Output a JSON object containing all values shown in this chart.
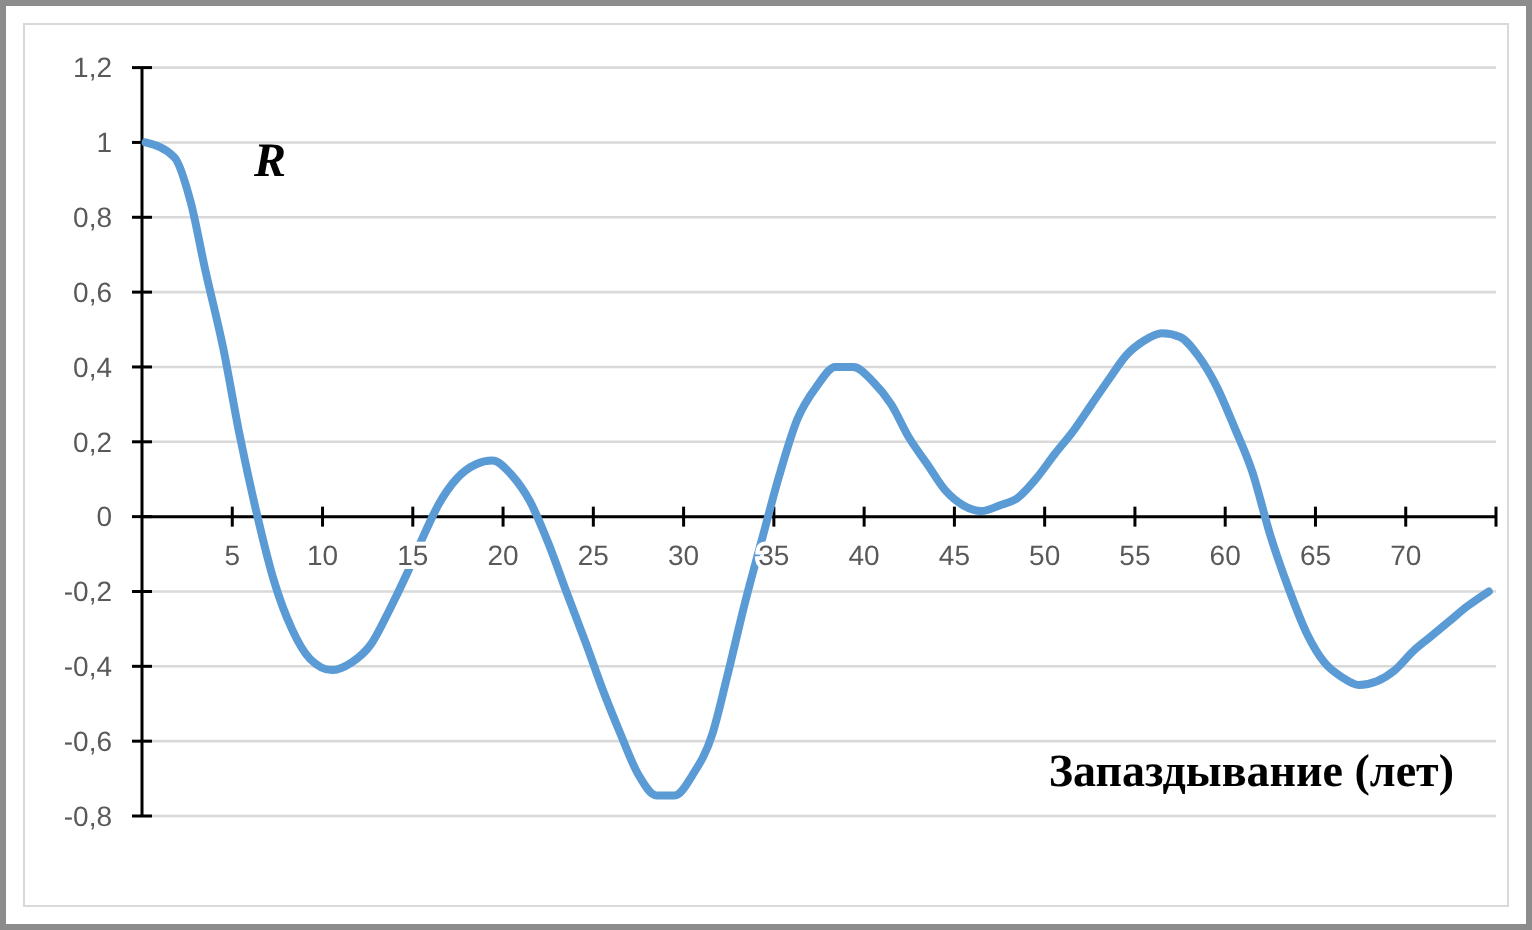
{
  "chart_data": {
    "type": "line",
    "xlabel": "Запаздывание (лет)",
    "ylabel": "R",
    "x": [
      0.2,
      1.8,
      2.7,
      3.5,
      4.5,
      5.4,
      6.3,
      7.3,
      8.3,
      9.3,
      10.5,
      11.6,
      12.7,
      13.7,
      14.7,
      15.7,
      16.4,
      17.4,
      18.5,
      19.4,
      20.5,
      21.5,
      22.5,
      23.5,
      24.6,
      25.5,
      26.5,
      27.5,
      28.5,
      29.5,
      30.5,
      31.6,
      32.4,
      33.4,
      34.4,
      35.3,
      36.3,
      37.4,
      38.4,
      39.4,
      40.5,
      41.5,
      42.5,
      43.5,
      44.5,
      45.5,
      46.5,
      47.5,
      48.5,
      49.5,
      50.6,
      51.6,
      52.6,
      53.6,
      54.5,
      55.5,
      56.5,
      57.5,
      58.5,
      59.5,
      60.5,
      61.5,
      62.5,
      63.5,
      64.5,
      65.5,
      66.5,
      67.4,
      68.4,
      69.4,
      70.4,
      71.4,
      72.4,
      73.4,
      74.6
    ],
    "series": [
      {
        "color": "#5b9bd5",
        "values": [
          1.0,
          0.96,
          0.84,
          0.66,
          0.45,
          0.22,
          0.02,
          -0.17,
          -0.3,
          -0.38,
          -0.41,
          -0.39,
          -0.34,
          -0.25,
          -0.15,
          -0.04,
          0.03,
          0.1,
          0.14,
          0.15,
          0.11,
          0.04,
          -0.07,
          -0.2,
          -0.34,
          -0.46,
          -0.58,
          -0.69,
          -0.745,
          -0.745,
          -0.69,
          -0.58,
          -0.43,
          -0.23,
          -0.05,
          0.11,
          0.26,
          0.35,
          0.4,
          0.4,
          0.36,
          0.3,
          0.21,
          0.14,
          0.07,
          0.03,
          0.015,
          0.03,
          0.05,
          0.1,
          0.17,
          0.23,
          0.3,
          0.37,
          0.43,
          0.47,
          0.49,
          0.48,
          0.43,
          0.35,
          0.24,
          0.12,
          -0.05,
          -0.19,
          -0.31,
          -0.39,
          -0.43,
          -0.45,
          -0.44,
          -0.41,
          -0.36,
          -0.32,
          -0.28,
          -0.24,
          -0.2
        ]
      }
    ],
    "xlim": [
      0,
      75
    ],
    "xticks": [
      5,
      10,
      15,
      20,
      25,
      30,
      35,
      40,
      45,
      50,
      55,
      60,
      65,
      70
    ],
    "ylim": [
      -0.8,
      1.2
    ],
    "yticks": [
      {
        "value": -0.8,
        "label": "-0,8"
      },
      {
        "value": -0.6,
        "label": "-0,6"
      },
      {
        "value": -0.4,
        "label": "-0,4"
      },
      {
        "value": -0.2,
        "label": "-0,2"
      },
      0,
      {
        "value": 0.2,
        "label": "0,2"
      },
      {
        "value": 0.4,
        "label": "0,4"
      },
      {
        "value": 0.6,
        "label": "0,6"
      },
      {
        "value": 0.8,
        "label": "0,8"
      },
      1,
      {
        "value": 1.2,
        "label": "1,2"
      }
    ],
    "grid": "y",
    "marker": "none",
    "line_style": "solid"
  }
}
